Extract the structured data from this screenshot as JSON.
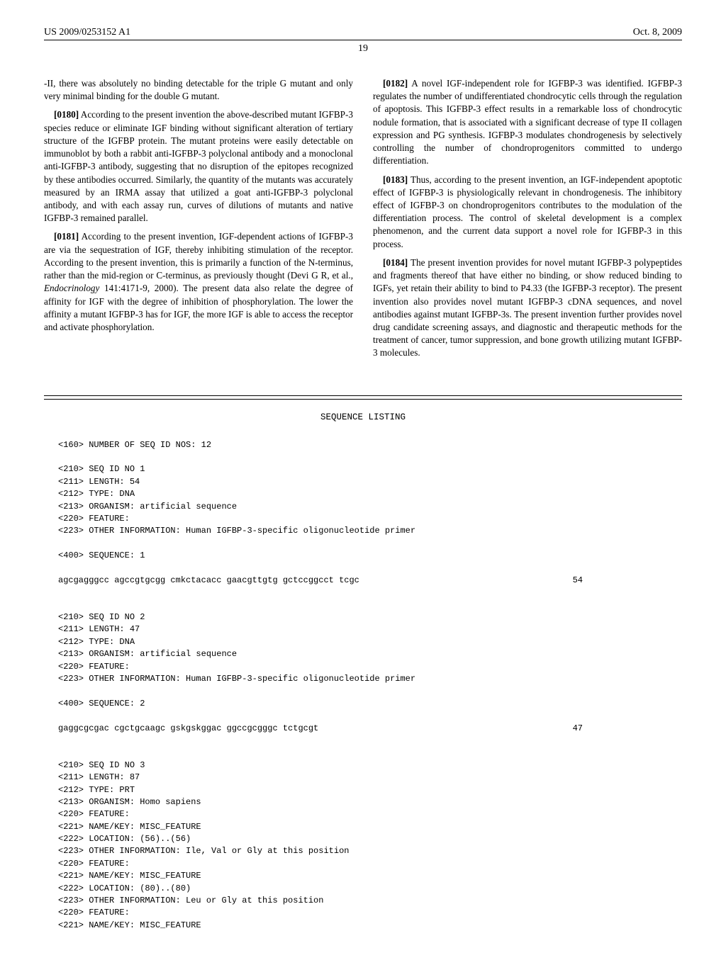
{
  "header": {
    "pubnum": "US 2009/0253152 A1",
    "date": "Oct. 8, 2009"
  },
  "pagenum": "19",
  "col1": {
    "p0": "-II, there was absolutely no binding detectable for the triple G mutant and only very minimal binding for the double G mutant.",
    "p1n": "[0180]",
    "p1": " According to the present invention the above-described mutant IGFBP-3 species reduce or eliminate IGF binding without significant alteration of tertiary structure of the IGFBP protein. The mutant proteins were easily detectable on immunoblot by both a rabbit anti-IGFBP-3 polyclonal antibody and a monoclonal anti-IGFBP-3 antibody, suggesting that no disruption of the epitopes recognized by these antibodies occurred. Similarly, the quantity of the mutants was accurately measured by an IRMA assay that utilized a goat anti-IGFBP-3 polyclonal antibody, and with each assay run, curves of dilutions of mutants and native IGFBP-3 remained parallel.",
    "p2n": "[0181]",
    "p2a": " According to the present invention, IGF-dependent actions of IGFBP-3 are via the sequestration of IGF, thereby inhibiting stimulation of the receptor. According to the present invention, this is primarily a function of the N-terminus, rather than the mid-region or C-terminus, as previously thought (Devi G R, et al., ",
    "p2i": "Endocrinology",
    "p2b": " 141:4171-9, 2000). The present data also relate the degree of affinity for IGF with the degree of inhibition of phosphorylation. The lower the affinity a mutant IGFBP-3 has for IGF, the more IGF is able to access the receptor and activate phosphorylation."
  },
  "col2": {
    "p1n": "[0182]",
    "p1": " A novel IGF-independent role for IGFBP-3 was identified. IGFBP-3 regulates the number of undifferentiated chondrocytic cells through the regulation of apoptosis. This IGFBP-3 effect results in a remarkable loss of chondrocytic nodule formation, that is associated with a significant decrease of type II collagen expression and PG synthesis. IGFBP-3 modulates chondrogenesis by selectively controlling the number of chondroprogenitors committed to undergo differentiation.",
    "p2n": "[0183]",
    "p2": " Thus, according to the present invention, an IGF-independent apoptotic effect of IGFBP-3 is physiologically relevant in chondrogenesis. The inhibitory effect of IGFBP-3 on chondroprogenitors contributes to the modulation of the differentiation process. The control of skeletal development is a complex phenomenon, and the current data support a novel role for IGFBP-3 in this process.",
    "p3n": "[0184]",
    "p3": " The present invention provides for novel mutant IGFBP-3 polypeptides and fragments thereof that have either no binding, or show reduced binding to IGFs, yet retain their ability to bind to P4.33 (the IGFBP-3 receptor). The present invention also provides novel mutant IGFBP-3 cDNA sequences, and novel antibodies against mutant IGFBP-3s. The present invention further provides novel drug candidate screening assays, and diagnostic and therapeutic methods for the treatment of cancer, tumor suppression, and bone growth utilizing mutant IGFBP-3 molecules."
  },
  "seq": {
    "title": "SEQUENCE LISTING",
    "block1": "<160> NUMBER OF SEQ ID NOS: 12\n\n<210> SEQ ID NO 1\n<211> LENGTH: 54\n<212> TYPE: DNA\n<213> ORGANISM: artificial sequence\n<220> FEATURE:\n<223> OTHER INFORMATION: Human IGFBP-3-specific oligonucleotide primer\n\n<400> SEQUENCE: 1",
    "seq1": "agcgagggcc agccgtgcgg cmkctacacc gaacgttgtg gctccggcct tcgc",
    "seq1len": "54",
    "block2": "<210> SEQ ID NO 2\n<211> LENGTH: 47\n<212> TYPE: DNA\n<213> ORGANISM: artificial sequence\n<220> FEATURE:\n<223> OTHER INFORMATION: Human IGFBP-3-specific oligonucleotide primer\n\n<400> SEQUENCE: 2",
    "seq2": "gaggcgcgac cgctgcaagc gskgskggac ggccgcgggc tctgcgt",
    "seq2len": "47",
    "block3": "<210> SEQ ID NO 3\n<211> LENGTH: 87\n<212> TYPE: PRT\n<213> ORGANISM: Homo sapiens\n<220> FEATURE:\n<221> NAME/KEY: MISC_FEATURE\n<222> LOCATION: (56)..(56)\n<223> OTHER INFORMATION: Ile, Val or Gly at this position\n<220> FEATURE:\n<221> NAME/KEY: MISC_FEATURE\n<222> LOCATION: (80)..(80)\n<223> OTHER INFORMATION: Leu or Gly at this position\n<220> FEATURE:\n<221> NAME/KEY: MISC_FEATURE"
  }
}
